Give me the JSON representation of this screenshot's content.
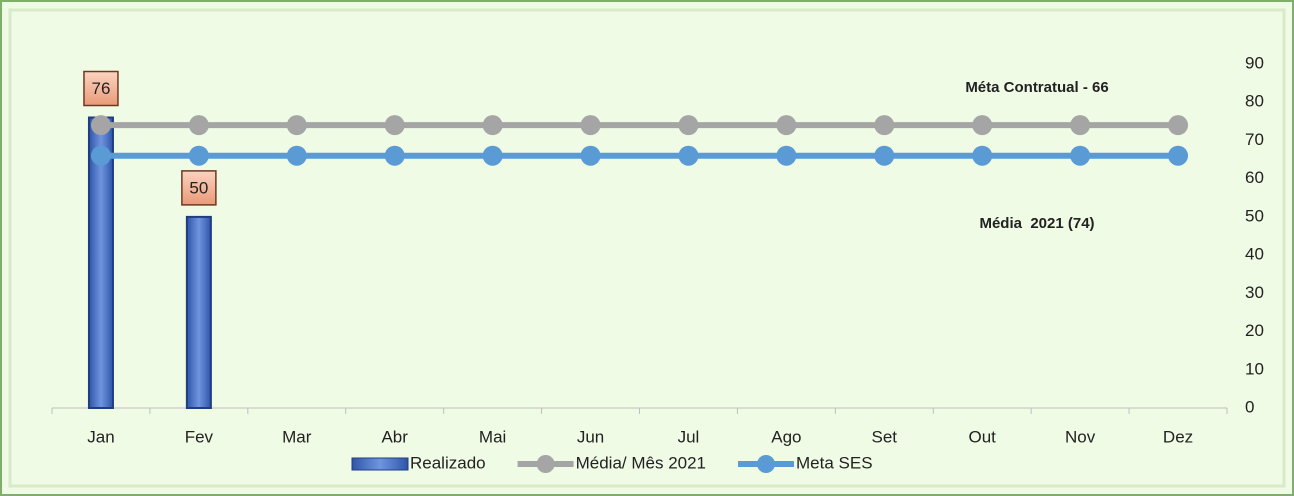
{
  "chart_data": {
    "type": "bar",
    "categories": [
      "Jan",
      "Fev",
      "Mar",
      "Abr",
      "Mai",
      "Jun",
      "Jul",
      "Ago",
      "Set",
      "Out",
      "Nov",
      "Dez"
    ],
    "series": [
      {
        "name": "Realizado",
        "type": "bar",
        "color": "#4472c4",
        "values": [
          76,
          50,
          null,
          null,
          null,
          null,
          null,
          null,
          null,
          null,
          null,
          null
        ]
      },
      {
        "name": "Média/ Mês 2021",
        "type": "line",
        "color": "#a5a5a5",
        "values": [
          74,
          74,
          74,
          74,
          74,
          74,
          74,
          74,
          74,
          74,
          74,
          74
        ]
      },
      {
        "name": "Meta SES",
        "type": "line",
        "color": "#5b9bd5",
        "values": [
          66,
          66,
          66,
          66,
          66,
          66,
          66,
          66,
          66,
          66,
          66,
          66
        ]
      }
    ],
    "annotations": [
      "Méta Contratual - 66",
      "Média  2021 (74)"
    ],
    "ylim": [
      0,
      90
    ],
    "yticks": [
      0,
      10,
      20,
      30,
      40,
      50,
      60,
      70,
      80,
      90
    ],
    "y_axis_side": "right",
    "grid": false,
    "legend": "bottom"
  }
}
